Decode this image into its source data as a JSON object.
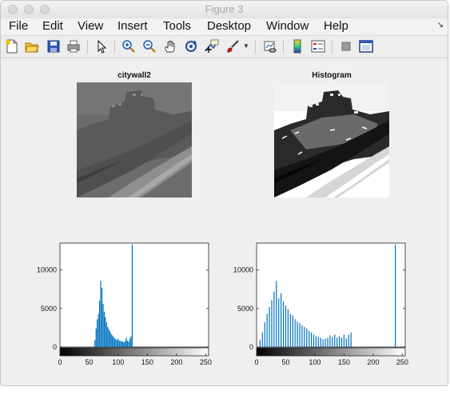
{
  "window": {
    "title": "Figure 3"
  },
  "menu": [
    "File",
    "Edit",
    "View",
    "Insert",
    "Tools",
    "Desktop",
    "Window",
    "Help"
  ],
  "menu_corner_icon": "dock-arrow-icon",
  "toolbar": [
    "new-figure-icon",
    "open-file-icon",
    "save-figure-icon",
    "print-figure-icon",
    "edit-plot-pointer-icon",
    "zoom-in-icon",
    "zoom-out-icon",
    "pan-hand-icon",
    "rotate-3d-icon",
    "data-cursor-icon",
    "brush-icon",
    "link-plot-icon",
    "insert-colorbar-icon",
    "insert-legend-icon",
    "hide-plot-tools-icon",
    "show-plot-tools-icon"
  ],
  "images": [
    {
      "title": "citywall2"
    },
    {
      "title": "Histogram"
    }
  ],
  "colors": {
    "bar": "#0072bd",
    "axes_bg": "#ffffff",
    "figure_bg": "#efefef"
  },
  "chart_data": [
    {
      "type": "bar",
      "title": "",
      "xlabel": "",
      "ylabel": "",
      "xlim": [
        0,
        255
      ],
      "ylim": [
        0,
        13500
      ],
      "xticks": [
        0,
        50,
        100,
        150,
        200,
        250
      ],
      "yticks": [
        0,
        5000,
        10000
      ],
      "colorbar": "gray",
      "x": [
        60,
        62,
        64,
        66,
        68,
        70,
        72,
        74,
        76,
        78,
        80,
        82,
        84,
        86,
        88,
        90,
        92,
        94,
        96,
        98,
        100,
        102,
        104,
        106,
        108,
        110,
        112,
        114,
        116,
        118,
        120,
        122,
        124
      ],
      "values": [
        900,
        2400,
        3600,
        4300,
        6000,
        8600,
        7700,
        5600,
        4600,
        3900,
        3200,
        2600,
        2300,
        2000,
        1700,
        1500,
        1300,
        1100,
        1000,
        900,
        1100,
        800,
        800,
        700,
        700,
        600,
        800,
        1200,
        800,
        700,
        1100,
        1400,
        13300
      ]
    },
    {
      "type": "bar",
      "title": "",
      "xlabel": "",
      "ylabel": "",
      "xlim": [
        0,
        255
      ],
      "ylim": [
        0,
        13500
      ],
      "xticks": [
        0,
        50,
        100,
        150,
        200,
        250
      ],
      "yticks": [
        0,
        5000,
        10000
      ],
      "colorbar": "gray",
      "x": [
        6,
        10,
        14,
        18,
        22,
        26,
        30,
        34,
        38,
        42,
        46,
        50,
        54,
        58,
        62,
        66,
        70,
        74,
        78,
        82,
        86,
        90,
        94,
        98,
        102,
        106,
        110,
        114,
        118,
        122,
        126,
        130,
        134,
        138,
        142,
        146,
        150,
        154,
        158,
        162,
        238
      ],
      "values": [
        900,
        1900,
        3200,
        4300,
        5200,
        6100,
        7200,
        8600,
        6300,
        7000,
        5900,
        5400,
        4900,
        4300,
        4100,
        3600,
        3300,
        3100,
        2800,
        2600,
        2400,
        2100,
        1900,
        1600,
        1400,
        1300,
        1200,
        1000,
        1100,
        1200,
        1500,
        1300,
        1600,
        1200,
        1400,
        1200,
        1600,
        1100,
        1600,
        1900,
        13300
      ]
    }
  ]
}
